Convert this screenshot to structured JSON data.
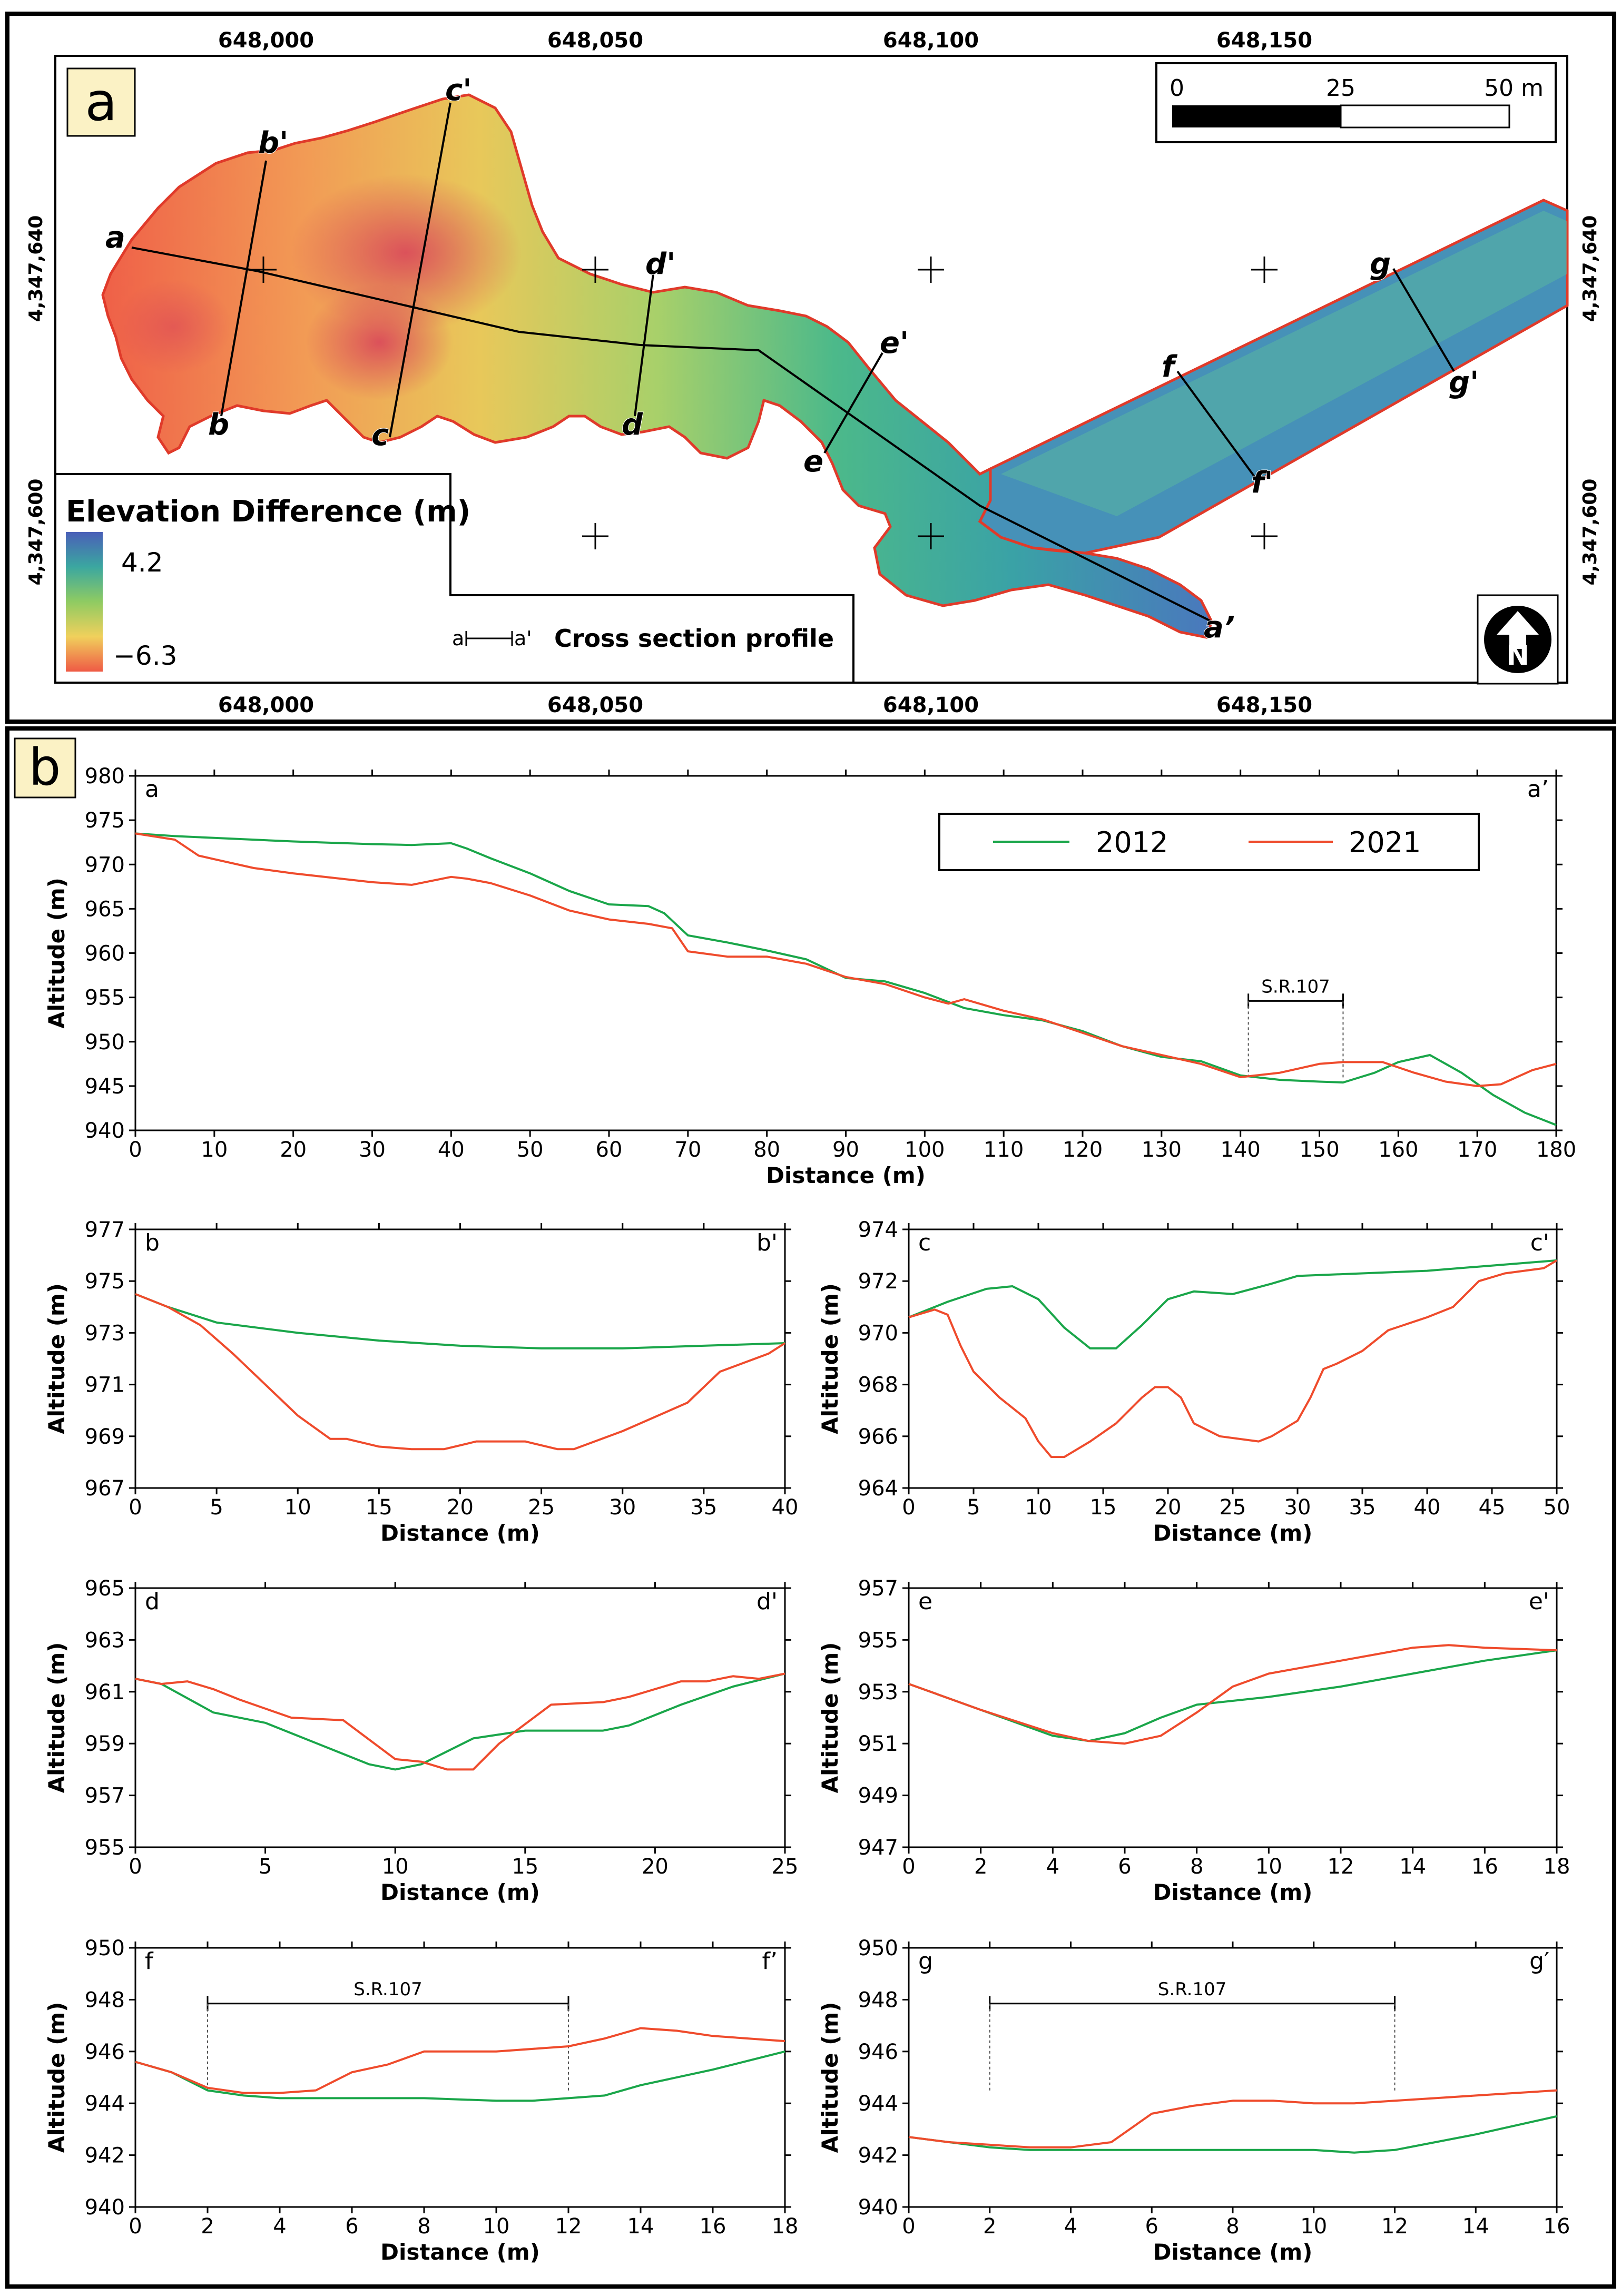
{
  "panel_a": {
    "label": "a",
    "x_ticks": [
      "648,000",
      "648,050",
      "648,100",
      "648,150"
    ],
    "y_ticks": [
      "4,347,640",
      "4,347,600"
    ],
    "scale_bar": {
      "labels": [
        "0",
        "25",
        "50 m"
      ]
    },
    "legend": {
      "title": "Elevation Difference (m)",
      "max": "4.2",
      "min": "−6.3"
    },
    "profile_legend": {
      "a": "a",
      "a_prime": "a'",
      "label": "Cross section profile"
    },
    "section_labels": {
      "a": "a",
      "a_end": "a’",
      "b": "b",
      "b_end": "b'",
      "c": "c",
      "c_end": "c'",
      "d": "d",
      "d_end": "d'",
      "e": "e",
      "e_end": "e'",
      "f": "f",
      "f_end": "f'",
      "g": "g",
      "g_end": "g'"
    },
    "north_icon": "north-arrow-icon",
    "colors": {
      "high": "#3d56b8",
      "mid": "#38b08e",
      "low": "#f05c4a",
      "outline": "#e03a2a"
    }
  },
  "panel_b": {
    "label": "b"
  },
  "legend": {
    "s2012": "2012",
    "s2021": "2021"
  },
  "colors": {
    "s2012": "#1aa64a",
    "s2021": "#ef4b2c"
  },
  "chart_data": [
    {
      "id": "a",
      "type": "line",
      "left_label": "a",
      "right_label": "a’",
      "xlabel": "Distance (m)",
      "ylabel": "Altitude (m)",
      "xlim": [
        0,
        180
      ],
      "ylim": [
        940,
        980
      ],
      "xticks": [
        0,
        10,
        20,
        30,
        40,
        50,
        60,
        70,
        80,
        90,
        100,
        110,
        120,
        130,
        140,
        150,
        160,
        170,
        180
      ],
      "yticks": [
        940,
        945,
        950,
        955,
        960,
        965,
        970,
        975,
        980
      ],
      "annotation": {
        "label": "S.R.107",
        "x_start": 141,
        "x_end": 153
      },
      "series": [
        {
          "name": "2012",
          "x": [
            0,
            5,
            10,
            20,
            30,
            35,
            40,
            42,
            45,
            50,
            55,
            60,
            65,
            67,
            70,
            75,
            80,
            85,
            90,
            95,
            100,
            105,
            110,
            115,
            120,
            125,
            130,
            135,
            140,
            145,
            150,
            153,
            157,
            160,
            164,
            168,
            172,
            176,
            180
          ],
          "y": [
            973.5,
            973.2,
            973.0,
            972.6,
            972.3,
            972.2,
            972.4,
            971.8,
            970.7,
            969.0,
            967.0,
            965.5,
            965.3,
            964.5,
            962.0,
            961.2,
            960.3,
            959.3,
            957.2,
            956.8,
            955.5,
            953.8,
            953.0,
            952.4,
            951.2,
            949.5,
            948.3,
            947.8,
            946.2,
            945.7,
            945.5,
            945.4,
            946.5,
            947.7,
            948.5,
            946.5,
            944.0,
            942.0,
            940.6
          ]
        },
        {
          "name": "2021",
          "x": [
            0,
            5,
            8,
            10,
            15,
            20,
            25,
            30,
            35,
            40,
            42,
            45,
            50,
            55,
            60,
            65,
            68,
            70,
            75,
            80,
            85,
            90,
            95,
            100,
            103,
            105,
            110,
            115,
            120,
            125,
            130,
            135,
            140,
            145,
            150,
            153,
            158,
            162,
            166,
            170,
            173,
            177,
            180
          ],
          "y": [
            973.5,
            972.8,
            971.0,
            970.6,
            969.6,
            969.0,
            968.5,
            968.0,
            967.7,
            968.6,
            968.4,
            967.9,
            966.5,
            964.8,
            963.8,
            963.3,
            962.8,
            960.2,
            959.6,
            959.6,
            958.8,
            957.3,
            956.5,
            955.0,
            954.3,
            954.8,
            953.5,
            952.5,
            951.0,
            949.5,
            948.5,
            947.5,
            946.0,
            946.5,
            947.5,
            947.7,
            947.7,
            946.5,
            945.5,
            945.0,
            945.2,
            946.8,
            947.5
          ]
        }
      ]
    },
    {
      "id": "b",
      "type": "line",
      "left_label": "b",
      "right_label": "b'",
      "xlabel": "Distance (m)",
      "ylabel": "Altitude (m)",
      "xlim": [
        0,
        40
      ],
      "ylim": [
        967,
        977
      ],
      "xticks": [
        0,
        5,
        10,
        15,
        20,
        25,
        30,
        35,
        40
      ],
      "yticks": [
        967,
        969,
        971,
        973,
        975,
        977
      ],
      "series": [
        {
          "name": "2012",
          "x": [
            0,
            2,
            5,
            10,
            15,
            20,
            25,
            30,
            35,
            40
          ],
          "y": [
            974.5,
            974.0,
            973.4,
            973.0,
            972.7,
            972.5,
            972.4,
            972.4,
            972.5,
            972.6
          ]
        },
        {
          "name": "2021",
          "x": [
            0,
            2,
            4,
            6,
            8,
            10,
            12,
            13,
            15,
            17,
            19,
            21,
            24,
            26,
            27,
            30,
            34,
            36,
            39,
            40
          ],
          "y": [
            974.5,
            974.0,
            973.3,
            972.2,
            971.0,
            969.8,
            968.9,
            968.9,
            968.6,
            968.5,
            968.5,
            968.8,
            968.8,
            968.5,
            968.5,
            969.2,
            970.3,
            971.5,
            972.2,
            972.6
          ]
        }
      ]
    },
    {
      "id": "c",
      "type": "line",
      "left_label": "c",
      "right_label": "c'",
      "xlabel": "Distance (m)",
      "ylabel": "Altitude (m)",
      "xlim": [
        0,
        50
      ],
      "ylim": [
        964,
        974
      ],
      "xticks": [
        0,
        5,
        10,
        15,
        20,
        25,
        30,
        35,
        40,
        45,
        50
      ],
      "yticks": [
        964,
        966,
        968,
        970,
        972,
        974
      ],
      "series": [
        {
          "name": "2012",
          "x": [
            0,
            3,
            6,
            8,
            10,
            12,
            14,
            16,
            18,
            20,
            22,
            25,
            28,
            30,
            35,
            40,
            45,
            50
          ],
          "y": [
            970.6,
            971.2,
            971.7,
            971.8,
            971.3,
            970.2,
            969.4,
            969.4,
            970.3,
            971.3,
            971.6,
            971.5,
            971.9,
            972.2,
            972.3,
            972.4,
            972.6,
            972.8
          ]
        },
        {
          "name": "2021",
          "x": [
            0,
            2,
            3,
            4,
            5,
            7,
            9,
            10,
            11,
            12,
            14,
            16,
            18,
            19,
            20,
            21,
            22,
            24,
            27,
            28,
            30,
            31,
            32,
            33,
            35,
            37,
            40,
            42,
            44,
            46,
            49,
            50
          ],
          "y": [
            970.6,
            970.9,
            970.7,
            969.5,
            968.5,
            967.5,
            966.7,
            965.8,
            965.2,
            965.2,
            965.8,
            966.5,
            967.5,
            967.9,
            967.9,
            967.5,
            966.5,
            966.0,
            965.8,
            966.0,
            966.6,
            967.5,
            968.6,
            968.8,
            969.3,
            970.1,
            970.6,
            971.0,
            972.0,
            972.3,
            972.5,
            972.8
          ]
        }
      ]
    },
    {
      "id": "d",
      "type": "line",
      "left_label": "d",
      "right_label": "d'",
      "xlabel": "Distance (m)",
      "ylabel": "Altitude (m)",
      "xlim": [
        0,
        25
      ],
      "ylim": [
        955,
        965
      ],
      "xticks": [
        0,
        5,
        10,
        15,
        20,
        25
      ],
      "yticks": [
        955,
        957,
        959,
        961,
        963,
        965
      ],
      "series": [
        {
          "name": "2012",
          "x": [
            0,
            1,
            3,
            5,
            7,
            9,
            10,
            11,
            13,
            15,
            18,
            19,
            21,
            23,
            25
          ],
          "y": [
            961.5,
            961.3,
            960.2,
            959.8,
            959.0,
            958.2,
            958.0,
            958.2,
            959.2,
            959.5,
            959.5,
            959.7,
            960.5,
            961.2,
            961.7
          ]
        },
        {
          "name": "2021",
          "x": [
            0,
            1,
            2,
            3,
            4,
            6,
            8,
            10,
            11,
            12,
            13,
            14,
            16,
            18,
            19,
            21,
            22,
            23,
            24,
            25
          ],
          "y": [
            961.5,
            961.3,
            961.4,
            961.1,
            960.7,
            960.0,
            959.9,
            958.4,
            958.3,
            958.0,
            958.0,
            959.0,
            960.5,
            960.6,
            960.8,
            961.4,
            961.4,
            961.6,
            961.5,
            961.7
          ]
        }
      ]
    },
    {
      "id": "e",
      "type": "line",
      "left_label": "e",
      "right_label": "e'",
      "xlabel": "Distance (m)",
      "ylabel": "Altitude (m)",
      "xlim": [
        0,
        18
      ],
      "ylim": [
        947,
        957
      ],
      "xticks": [
        0,
        2,
        4,
        6,
        8,
        10,
        12,
        14,
        16,
        18
      ],
      "yticks": [
        947,
        949,
        951,
        953,
        955,
        957
      ],
      "series": [
        {
          "name": "2012",
          "x": [
            0,
            2,
            4,
            5,
            6,
            7,
            8,
            10,
            12,
            14,
            16,
            18
          ],
          "y": [
            953.3,
            952.3,
            951.3,
            951.1,
            951.4,
            952.0,
            952.5,
            952.8,
            953.2,
            953.7,
            954.2,
            954.6
          ]
        },
        {
          "name": "2021",
          "x": [
            0,
            2,
            4,
            5,
            6,
            7,
            8,
            9,
            10,
            12,
            14,
            15,
            16,
            18
          ],
          "y": [
            953.3,
            952.3,
            951.4,
            951.1,
            951.0,
            951.3,
            952.2,
            953.2,
            953.7,
            954.2,
            954.7,
            954.8,
            954.7,
            954.6
          ]
        }
      ]
    },
    {
      "id": "f",
      "type": "line",
      "left_label": "f",
      "right_label": "f’",
      "xlabel": "Distance (m)",
      "ylabel": "Altitude (m)",
      "xlim": [
        0,
        18
      ],
      "ylim": [
        940,
        950
      ],
      "xticks": [
        0,
        2,
        4,
        6,
        8,
        10,
        12,
        14,
        16,
        18
      ],
      "yticks": [
        940,
        942,
        944,
        946,
        948,
        950
      ],
      "annotation": {
        "label": "S.R.107",
        "x_start": 2,
        "x_end": 12
      },
      "series": [
        {
          "name": "2012",
          "x": [
            0,
            1,
            2,
            3,
            4,
            6,
            8,
            10,
            11,
            12,
            13,
            14,
            16,
            18
          ],
          "y": [
            945.6,
            945.2,
            944.5,
            944.3,
            944.2,
            944.2,
            944.2,
            944.1,
            944.1,
            944.2,
            944.3,
            944.7,
            945.3,
            946.0
          ]
        },
        {
          "name": "2021",
          "x": [
            0,
            1,
            2,
            3,
            4,
            5,
            6,
            7,
            8,
            10,
            12,
            13,
            14,
            15,
            16,
            17,
            18
          ],
          "y": [
            945.6,
            945.2,
            944.6,
            944.4,
            944.4,
            944.5,
            945.2,
            945.5,
            946.0,
            946.0,
            946.2,
            946.5,
            946.9,
            946.8,
            946.6,
            946.5,
            946.4
          ]
        }
      ]
    },
    {
      "id": "g",
      "type": "line",
      "left_label": "g",
      "right_label": "g′",
      "xlabel": "Distance (m)",
      "ylabel": "Altitude (m)",
      "xlim": [
        0,
        16
      ],
      "ylim": [
        940,
        950
      ],
      "xticks": [
        0,
        2,
        4,
        6,
        8,
        10,
        12,
        14,
        16
      ],
      "yticks": [
        940,
        942,
        944,
        946,
        948,
        950
      ],
      "annotation": {
        "label": "S.R.107",
        "x_start": 2,
        "x_end": 12
      },
      "series": [
        {
          "name": "2012",
          "x": [
            0,
            1,
            2,
            3,
            4,
            6,
            8,
            10,
            11,
            12,
            13,
            14,
            16
          ],
          "y": [
            942.7,
            942.5,
            942.3,
            942.2,
            942.2,
            942.2,
            942.2,
            942.2,
            942.1,
            942.2,
            942.5,
            942.8,
            943.5
          ]
        },
        {
          "name": "2021",
          "x": [
            0,
            1,
            2,
            3,
            4,
            5,
            6,
            7,
            8,
            9,
            10,
            11,
            12,
            13,
            14,
            15,
            16
          ],
          "y": [
            942.7,
            942.5,
            942.4,
            942.3,
            942.3,
            942.5,
            943.6,
            943.9,
            944.1,
            944.1,
            944.0,
            944.0,
            944.1,
            944.2,
            944.3,
            944.4,
            944.5
          ]
        }
      ]
    }
  ]
}
